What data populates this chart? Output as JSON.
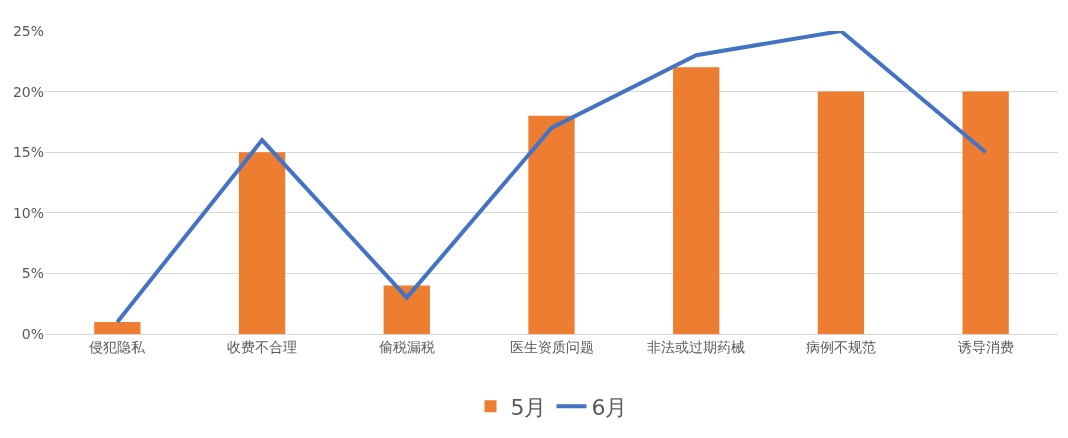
{
  "chart_data": {
    "type": "bar",
    "categories": [
      "侵犯隐私",
      "收费不合理",
      "偷税漏税",
      "医生资质问题",
      "非法或过期药械",
      "病例不规范",
      "诱导消费"
    ],
    "series": [
      {
        "name": "5月",
        "color": "#ed7d31",
        "values": [
          1,
          15,
          4,
          18,
          22,
          20,
          20
        ]
      },
      {
        "name": "6月",
        "type": "line",
        "color": "#4472c4",
        "values": [
          1,
          16,
          3,
          17,
          23,
          25,
          15
        ]
      }
    ],
    "ylim": [
      0,
      25
    ],
    "yticks": [
      {
        "value": 0,
        "label": "0%"
      },
      {
        "value": 5,
        "label": "5%"
      },
      {
        "value": 10,
        "label": "10%"
      },
      {
        "value": 15,
        "label": "15%"
      },
      {
        "value": 20,
        "label": "20%"
      },
      {
        "value": 25,
        "label": "25%"
      }
    ],
    "grid": "y",
    "legend": "bottom"
  }
}
